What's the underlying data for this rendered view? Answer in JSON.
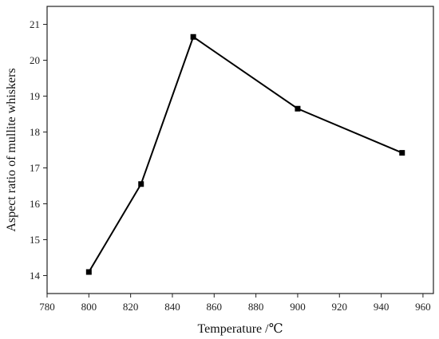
{
  "chart_data": {
    "type": "line",
    "xlabel": "Temperature /℃",
    "ylabel": "Aspect ratio of mullite whiskers",
    "xlim": [
      780,
      965
    ],
    "ylim": [
      13.5,
      21.5
    ],
    "x_ticks": [
      780,
      800,
      820,
      840,
      860,
      880,
      900,
      920,
      940,
      960
    ],
    "y_ticks": [
      14,
      15,
      16,
      17,
      18,
      19,
      20,
      21
    ],
    "grid": false,
    "series": [
      {
        "x": [
          800,
          825,
          850,
          900,
          950
        ],
        "y": [
          14.1,
          16.55,
          20.65,
          18.65,
          17.42
        ],
        "marker": "square",
        "color": "#000000"
      }
    ]
  }
}
